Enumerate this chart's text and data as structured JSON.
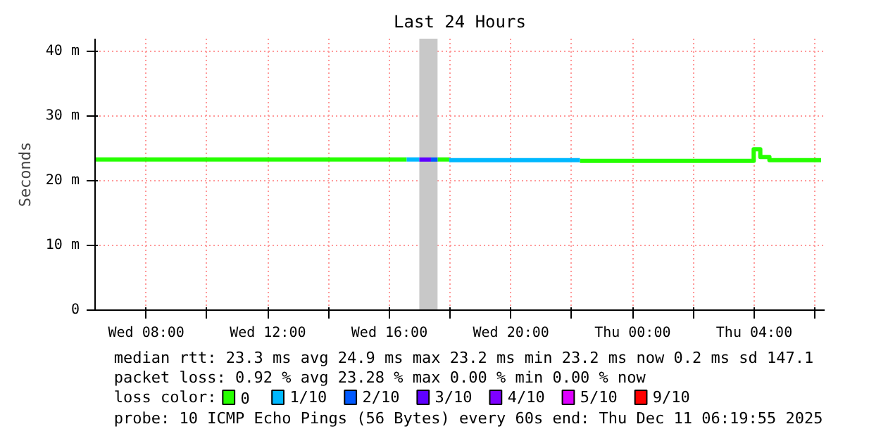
{
  "chart_data": {
    "type": "line",
    "title": "Last 24 Hours",
    "ylabel": "Seconds",
    "series": [
      {
        "name": "0",
        "color": "#26ff00",
        "x": [
          "2025-12-10T06:19",
          "2025-12-10T16:34",
          null,
          "2025-12-10T17:35",
          "2025-12-10T17:58",
          null,
          "2025-12-10T22:16",
          "2025-12-11T03:59",
          "2025-12-11T03:59",
          "2025-12-11T04:12",
          "2025-12-11T04:12",
          "2025-12-11T04:30",
          "2025-12-11T04:30",
          "2025-12-11T06:12"
        ],
        "values": [
          23.3,
          23.3,
          null,
          23.3,
          23.3,
          null,
          23.1,
          23.1,
          24.9,
          24.9,
          23.7,
          23.7,
          23.2,
          23.2
        ]
      },
      {
        "name": "1/10",
        "color": "#00b8ff",
        "x": [
          "2025-12-10T16:34",
          "2025-12-10T16:59",
          null,
          "2025-12-10T17:58",
          "2025-12-10T22:16"
        ],
        "values": [
          23.3,
          23.3,
          null,
          23.2,
          23.2
        ]
      },
      {
        "name": "2/10",
        "color": "#0059ff",
        "x": [
          "2025-12-10T17:22",
          "2025-12-10T17:35"
        ],
        "values": [
          23.3,
          23.3
        ]
      },
      {
        "name": "3/10",
        "color": "#5e00ff",
        "x": [
          "2025-12-10T16:59",
          "2025-12-10T17:22"
        ],
        "values": [
          23.3,
          23.3
        ]
      },
      {
        "name": "4/10",
        "color": "#7e00ff"
      },
      {
        "name": "5/10",
        "color": "#dd00ff"
      },
      {
        "name": "9/10",
        "color": "#ff0000"
      }
    ],
    "legend_title": "loss color:",
    "legend": "bottom",
    "bands": [
      {
        "axis": "x",
        "from": "2025-12-10T16:59",
        "to": "2025-12-10T17:35",
        "color": "#c8c8c8"
      }
    ],
    "xlim": [
      "2025-12-10T06:19",
      "2025-12-11T06:19"
    ],
    "xticks": [
      {
        "value": "2025-12-10T08:00",
        "label": "Wed 08:00"
      },
      {
        "value": "2025-12-10T10:00",
        "label": null
      },
      {
        "value": "2025-12-10T12:00",
        "label": "Wed 12:00"
      },
      {
        "value": "2025-12-10T14:00",
        "label": null
      },
      {
        "value": "2025-12-10T16:00",
        "label": "Wed 16:00"
      },
      {
        "value": "2025-12-10T18:00",
        "label": null
      },
      {
        "value": "2025-12-10T20:00",
        "label": "Wed 20:00"
      },
      {
        "value": "2025-12-10T22:00",
        "label": null
      },
      {
        "value": "2025-12-11T00:00",
        "label": "Thu 00:00"
      },
      {
        "value": "2025-12-11T02:00",
        "label": null
      },
      {
        "value": "2025-12-11T04:00",
        "label": "Thu 04:00"
      },
      {
        "value": "2025-12-11T06:00",
        "label": null
      }
    ],
    "ylim": [
      0,
      42
    ],
    "yticks": [
      0,
      {
        "value": 10,
        "label": "10 m"
      },
      {
        "value": 20,
        "label": "20 m"
      },
      {
        "value": 30,
        "label": "30 m"
      },
      {
        "value": 40,
        "label": "40 m"
      }
    ],
    "grid": true,
    "annotations": [
      "median rtt:  23.3 ms avg  24.9 ms max  23.2 ms min  23.2 ms now  0.2 ms sd  147.1",
      "packet loss: 0.92 % avg  23.28 % max  0.00 % min  0.00 % now",
      "probe:       10 ICMP Echo Pings (56 Bytes) every 60s  end: Thu Dec 11 06:19:55 2025"
    ]
  }
}
